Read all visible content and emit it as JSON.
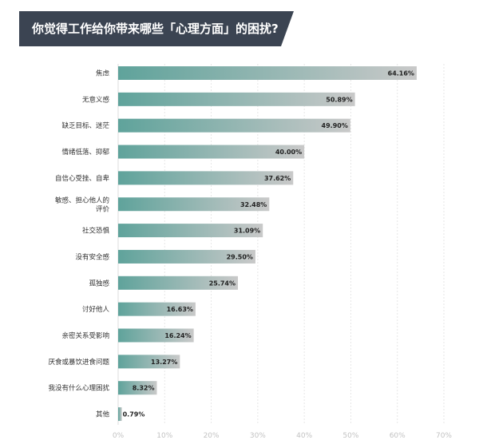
{
  "title": "你觉得工作给你带来哪些「心理方面」的困扰?",
  "chart_data": {
    "type": "bar",
    "orientation": "horizontal",
    "title": "你觉得工作给你带来哪些「心理方面」的困扰?",
    "categories": [
      [
        "焦虑"
      ],
      [
        "无意义感"
      ],
      [
        "缺乏目标、迷茫"
      ],
      [
        "情绪低落、抑郁"
      ],
      [
        "自信心受挫、自卑"
      ],
      [
        "敏感、担心他人的",
        "评价"
      ],
      [
        "社交恐惧"
      ],
      [
        "没有安全感"
      ],
      [
        "孤独感"
      ],
      [
        "讨好他人"
      ],
      [
        "亲密关系受影响"
      ],
      [
        "厌食或暴饮进食问题"
      ],
      [
        "我没有什么心理困扰"
      ],
      [
        "其他"
      ]
    ],
    "values": [
      64.16,
      50.89,
      49.9,
      40.0,
      37.62,
      32.48,
      31.09,
      29.5,
      25.74,
      16.63,
      16.24,
      13.27,
      8.32,
      0.79
    ],
    "value_labels": [
      "64.16%",
      "50.89%",
      "49.90%",
      "40.00%",
      "37.62%",
      "32.48%",
      "31.09%",
      "29.50%",
      "25.74%",
      "16.63%",
      "16.24%",
      "13.27%",
      "8.32%",
      "0.79%"
    ],
    "xlim": [
      0,
      70
    ],
    "x_ticks": [
      "0%",
      "10%",
      "20%",
      "30%",
      "40%",
      "50%",
      "60%",
      "70%"
    ],
    "grid": true,
    "colors": {
      "bar_start": "#5fa39b",
      "bar_end": "#c9c9c9",
      "title_bg": "#3b4452"
    }
  }
}
